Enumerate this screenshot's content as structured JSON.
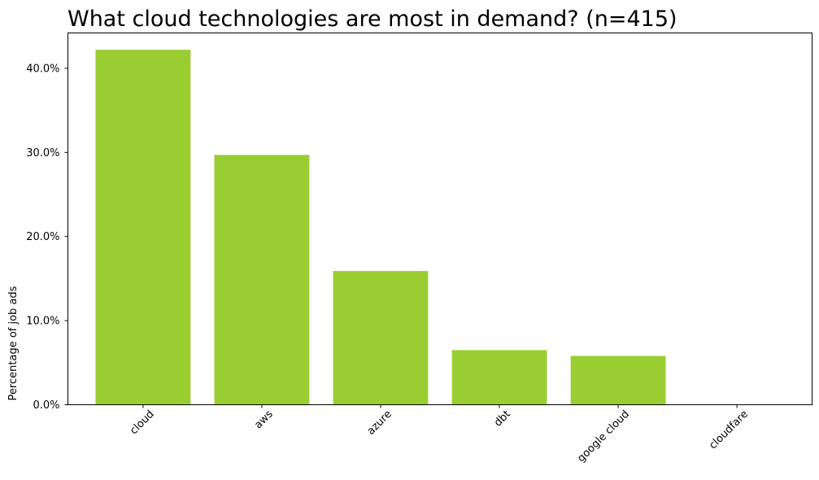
{
  "chart_data": {
    "type": "bar",
    "title": "What cloud technologies are most in demand? (n=415)",
    "xlabel": "",
    "ylabel": "Percentage of job ads",
    "categories": [
      "cloud",
      "aws",
      "azure",
      "dbt",
      "google cloud",
      "cloudfare"
    ],
    "values": [
      42.2,
      29.7,
      15.9,
      6.5,
      5.8,
      0.0
    ],
    "ylim": [
      0,
      44.2
    ],
    "yticks": [
      0,
      10,
      20,
      30,
      40
    ],
    "ytick_labels": [
      "0.0%",
      "10.0%",
      "20.0%",
      "30.0%",
      "40.0%"
    ],
    "bar_color": "#9acd32",
    "grid": false,
    "legend": "none"
  }
}
